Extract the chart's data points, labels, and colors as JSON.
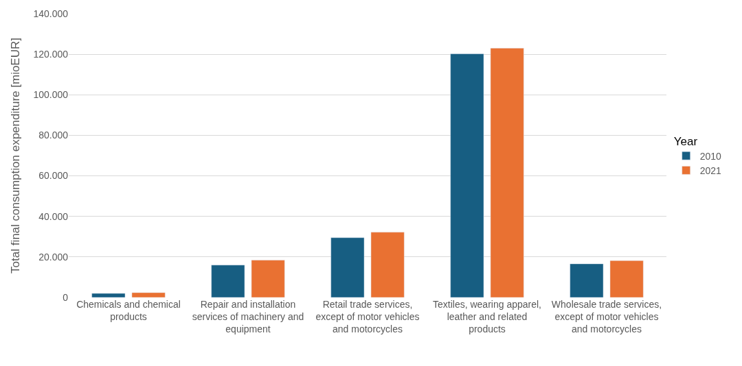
{
  "chart_data": {
    "type": "bar",
    "ylabel": "Total final consumption expenditure [mioEUR]",
    "legend_title": "Year",
    "categories": [
      "Chemicals and chemical products",
      "Repair and installation services of machinery and equipment",
      "Retail trade services, except of motor vehicles and motorcycles",
      "Textiles, wearing apparel, leather and related products",
      "Wholesale trade services, except of motor vehicles and motorcycles"
    ],
    "series": [
      {
        "name": "2010",
        "color": "#175e82",
        "values": [
          2000,
          16000,
          29500,
          120200,
          16600
        ]
      },
      {
        "name": "2021",
        "color": "#e97132",
        "values": [
          2400,
          18400,
          32200,
          123000,
          18200
        ]
      }
    ],
    "ylim": [
      0,
      140000
    ],
    "yticks": [
      {
        "value": 0,
        "label": "0"
      },
      {
        "value": 20000,
        "label": "20.000"
      },
      {
        "value": 40000,
        "label": "40.000"
      },
      {
        "value": 60000,
        "label": "60.000"
      },
      {
        "value": 80000,
        "label": "80.000"
      },
      {
        "value": 100000,
        "label": "100.000"
      },
      {
        "value": 120000,
        "label": "120.000"
      },
      {
        "value": 140000,
        "label": "140.000"
      }
    ],
    "grid": "y",
    "legend": "right"
  }
}
